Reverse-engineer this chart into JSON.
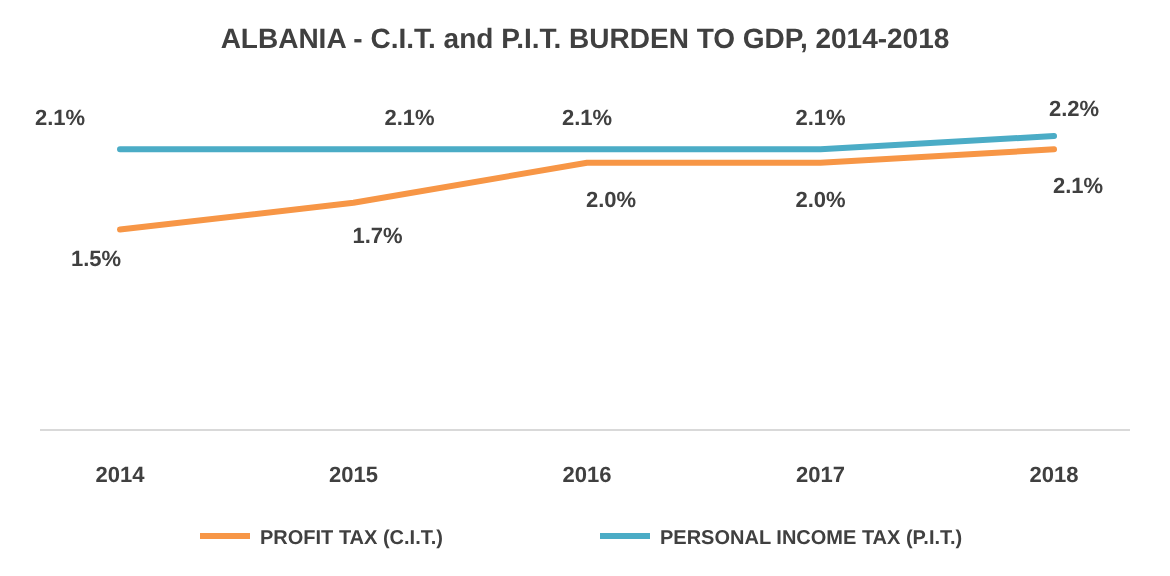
{
  "chart_data": {
    "type": "line",
    "title": "ALBANIA - C.I.T. and P.I.T. BURDEN TO GDP, 2014-2018",
    "categories": [
      "2014",
      "2015",
      "2016",
      "2017",
      "2018"
    ],
    "tick_labels": "x",
    "legend": "bottom",
    "marker": "none",
    "series": [
      {
        "name": "PROFIT TAX (C.I.T.)",
        "color": "#f79646",
        "values": [
          1.5,
          1.7,
          2.0,
          2.0,
          2.1
        ],
        "value_labels": [
          "1.5%",
          "1.7%",
          "2.0%",
          "2.0%",
          "2.1%"
        ]
      },
      {
        "name": "PERSONAL INCOME TAX (P.I.T.)",
        "color": "#4bacc6",
        "values": [
          2.1,
          2.1,
          2.1,
          2.1,
          2.2
        ],
        "value_labels": [
          "2.1%",
          "2.1%",
          "2.1%",
          "2.1%",
          "2.2%"
        ]
      }
    ]
  }
}
